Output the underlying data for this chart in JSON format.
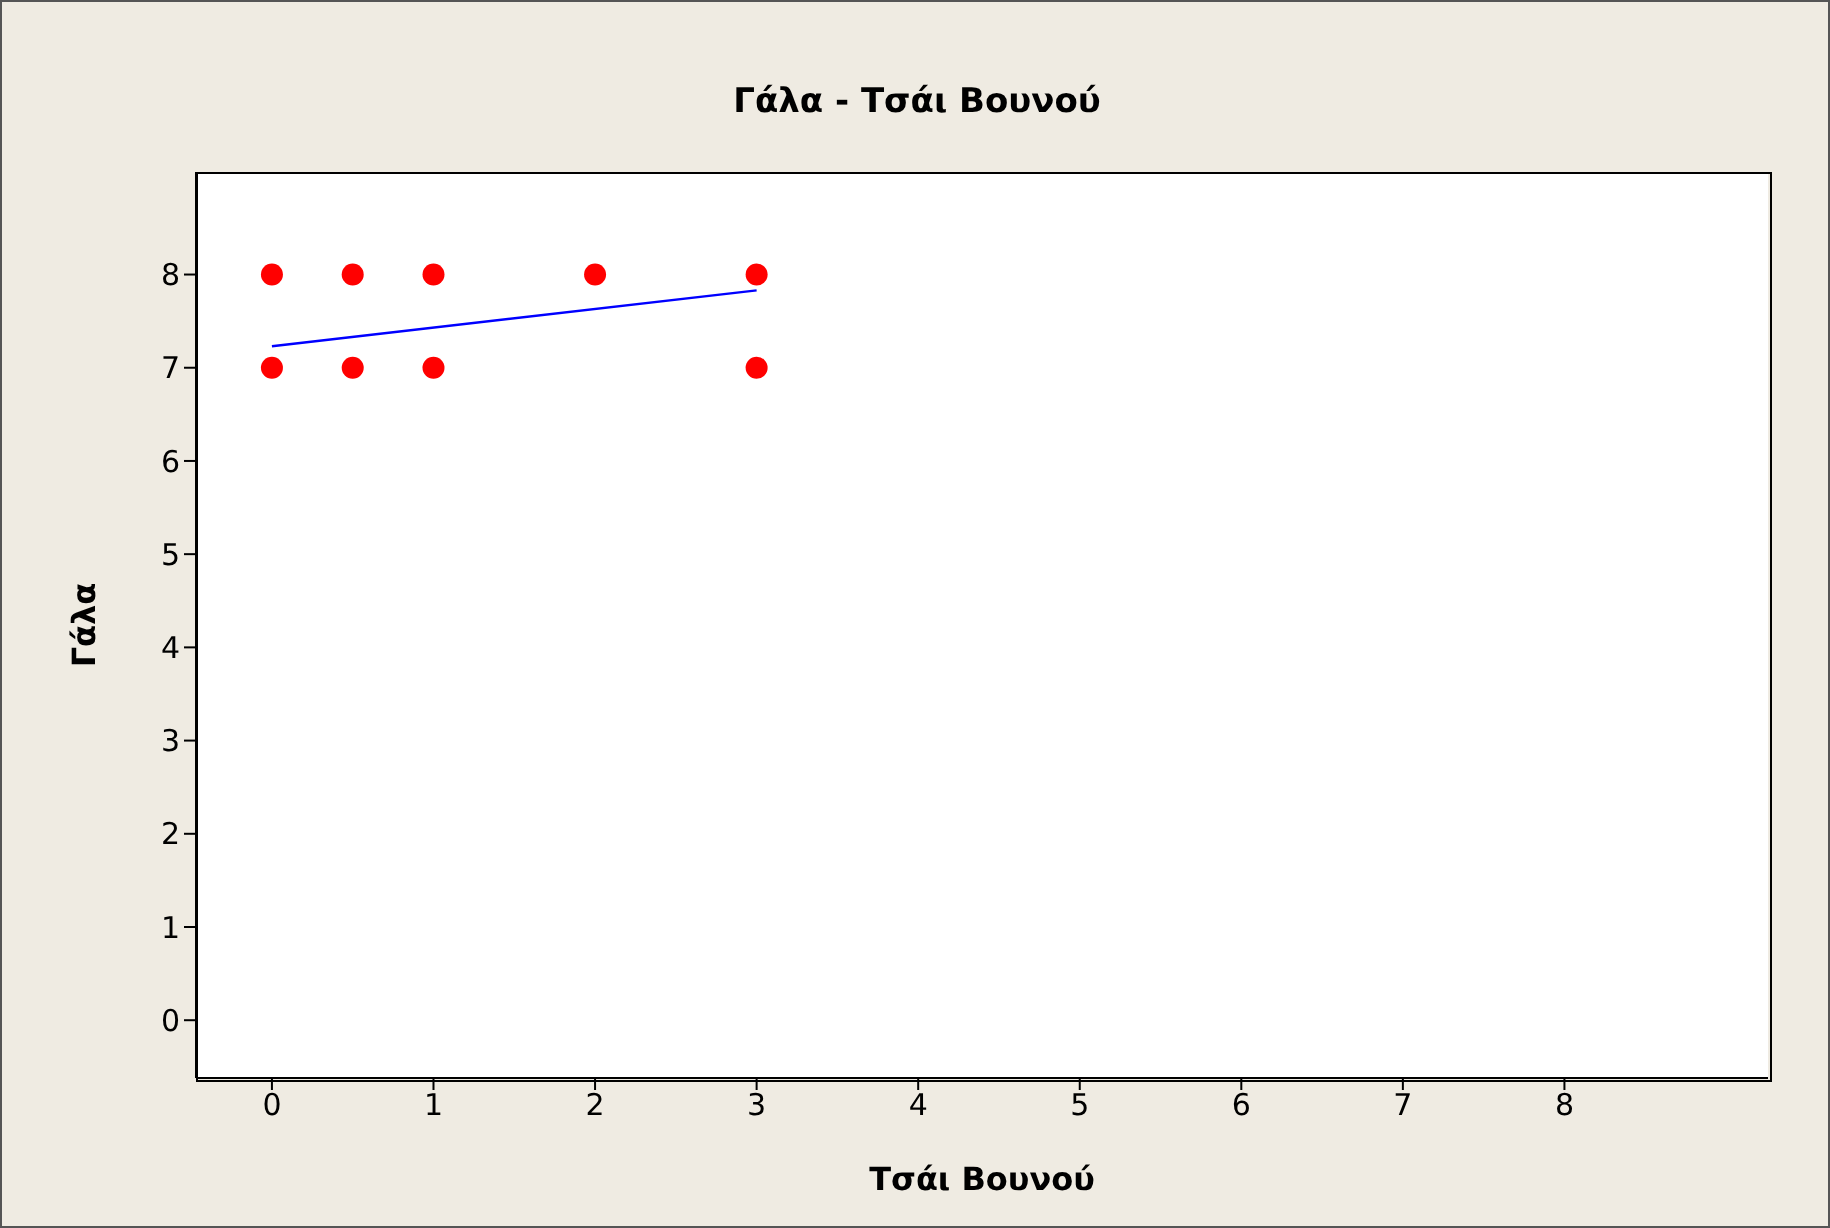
{
  "chart_data": {
    "type": "scatter",
    "title": "Γάλα - Τσάι Βουνού",
    "xlabel": "Τσάι Βουνού",
    "ylabel": "Γάλα",
    "xlim": [
      -0.47,
      9.26
    ],
    "ylim": [
      -0.62,
      9.1
    ],
    "xticks": [
      0,
      1,
      2,
      3,
      4,
      5,
      6,
      7,
      8
    ],
    "yticks": [
      0,
      1,
      2,
      3,
      4,
      5,
      6,
      7,
      8
    ],
    "legend": false,
    "series": [
      {
        "color": "#ff0000",
        "marker": "circle",
        "x": [
          0,
          0.5,
          1,
          2,
          3,
          0,
          0.5,
          1,
          3
        ],
        "values": [
          8,
          8,
          8,
          8,
          8,
          7,
          7,
          7,
          7
        ]
      },
      {
        "type": "line",
        "marker": "none",
        "color": "#0000ff",
        "x": [
          0,
          3
        ],
        "values": [
          7.23,
          7.83
        ]
      }
    ]
  }
}
